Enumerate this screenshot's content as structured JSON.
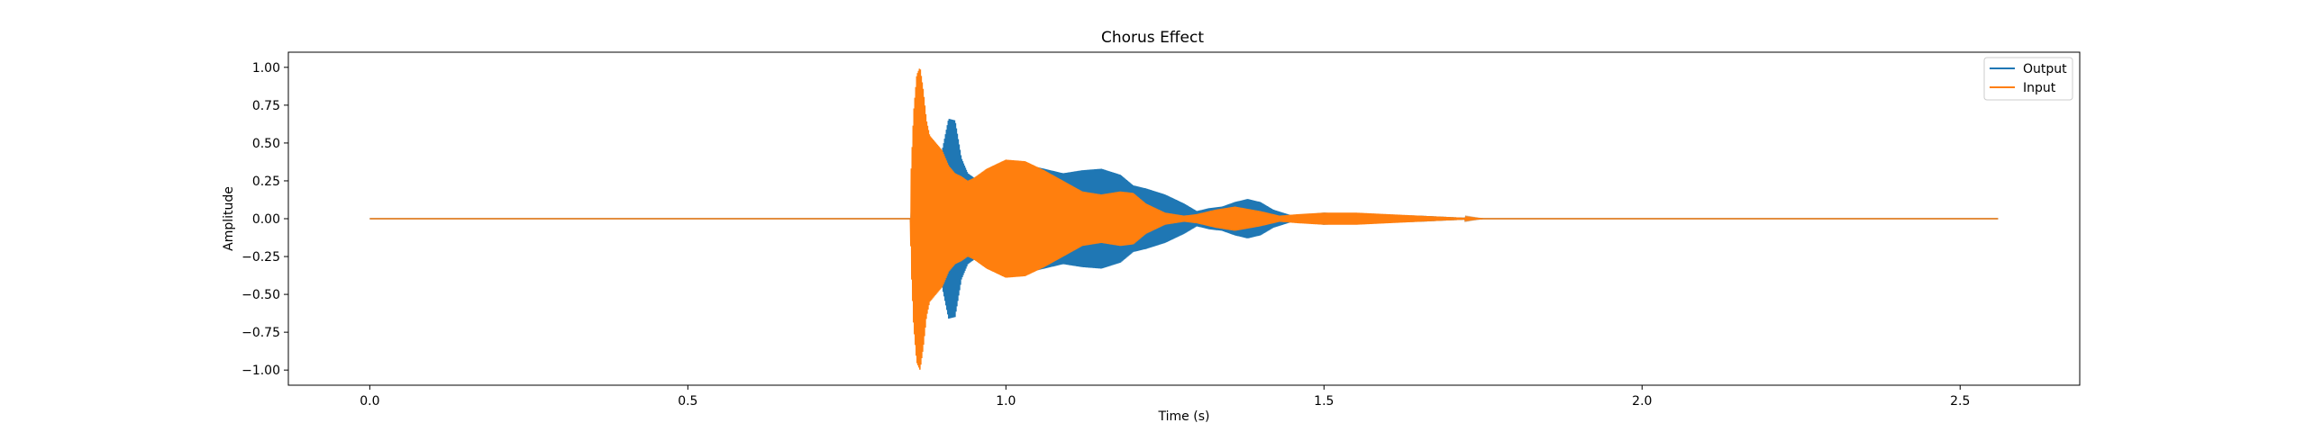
{
  "chart_data": {
    "type": "line",
    "title": "Chorus Effect",
    "xlabel": "Time (s)",
    "ylabel": "Amplitude",
    "xlim": [
      -0.128,
      2.688
    ],
    "ylim": [
      -1.1,
      1.1
    ],
    "xticks": [
      0.0,
      0.5,
      1.0,
      1.5,
      2.0,
      2.5
    ],
    "xtick_labels": [
      "0.0",
      "0.5",
      "1.0",
      "1.5",
      "2.0",
      "2.5"
    ],
    "yticks": [
      1.0,
      0.75,
      0.5,
      0.25,
      0.0,
      -0.25,
      -0.5,
      -0.75,
      -1.0
    ],
    "ytick_labels": [
      "1.00",
      "0.75",
      "0.50",
      "0.25",
      "0.00",
      "−0.25",
      "−0.50",
      "−0.75",
      "−1.00"
    ],
    "grid": false,
    "legend_position": "top-right",
    "series": [
      {
        "name": "Output",
        "color": "#1f77b4",
        "envelope": {
          "t": [
            0.0,
            0.85,
            0.851,
            0.86,
            0.87,
            0.88,
            0.89,
            0.9,
            0.91,
            0.92,
            0.93,
            0.94,
            0.95,
            0.97,
            1.0,
            1.03,
            1.06,
            1.09,
            1.12,
            1.15,
            1.18,
            1.2,
            1.22,
            1.25,
            1.28,
            1.3,
            1.32,
            1.34,
            1.36,
            1.38,
            1.4,
            1.42,
            1.45,
            1.5,
            1.55,
            1.6,
            1.65,
            1.7,
            1.75,
            2.56
          ],
          "a": [
            0.0,
            0.0,
            0.05,
            0.2,
            0.45,
            0.4,
            0.3,
            0.45,
            0.66,
            0.65,
            0.4,
            0.3,
            0.27,
            0.3,
            0.38,
            0.36,
            0.33,
            0.3,
            0.32,
            0.33,
            0.29,
            0.22,
            0.2,
            0.16,
            0.1,
            0.05,
            0.07,
            0.08,
            0.11,
            0.13,
            0.11,
            0.06,
            0.02,
            0.04,
            0.03,
            0.025,
            0.02,
            0.01,
            0.0,
            0.0
          ]
        }
      },
      {
        "name": "Input",
        "color": "#ff7f0e",
        "envelope": {
          "t": [
            0.0,
            0.85,
            0.851,
            0.855,
            0.86,
            0.865,
            0.87,
            0.875,
            0.88,
            0.89,
            0.9,
            0.91,
            0.92,
            0.93,
            0.94,
            0.95,
            0.97,
            1.0,
            1.03,
            1.06,
            1.09,
            1.12,
            1.15,
            1.18,
            1.2,
            1.22,
            1.25,
            1.28,
            1.3,
            1.33,
            1.36,
            1.4,
            1.43,
            1.46,
            1.5,
            1.55,
            1.6,
            1.65,
            1.7,
            1.75,
            2.56
          ],
          "a": [
            0.0,
            0.0,
            0.3,
            0.7,
            0.95,
            1.0,
            0.85,
            0.65,
            0.55,
            0.5,
            0.45,
            0.35,
            0.3,
            0.28,
            0.25,
            0.27,
            0.33,
            0.39,
            0.38,
            0.32,
            0.25,
            0.18,
            0.16,
            0.18,
            0.17,
            0.1,
            0.04,
            0.02,
            0.03,
            0.06,
            0.08,
            0.05,
            0.02,
            0.03,
            0.04,
            0.04,
            0.03,
            0.02,
            0.01,
            0.0,
            0.0
          ]
        }
      }
    ]
  }
}
